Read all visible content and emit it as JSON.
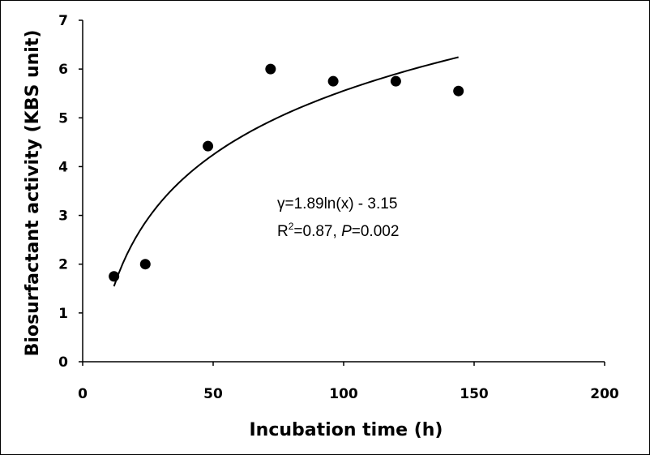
{
  "chart_data": {
    "type": "scatter",
    "xlabel": "Incubation time (h)",
    "ylabel": "Biosurfactant activity (KBS unit)",
    "xlim": [
      0,
      200
    ],
    "ylim": [
      0,
      7
    ],
    "xticks": [
      "0",
      "50",
      "100",
      "150",
      "200"
    ],
    "yticks": [
      "0",
      "1",
      "2",
      "3",
      "4",
      "5",
      "6",
      "7"
    ],
    "grid": false,
    "points": [
      {
        "x": 12,
        "y": 1.75
      },
      {
        "x": 24,
        "y": 2.0
      },
      {
        "x": 48,
        "y": 4.42
      },
      {
        "x": 72,
        "y": 6.0
      },
      {
        "x": 96,
        "y": 5.75
      },
      {
        "x": 120,
        "y": 5.75
      },
      {
        "x": 144,
        "y": 5.55
      }
    ],
    "trendline": {
      "type": "logarithmic",
      "a": 1.89,
      "b": -3.15,
      "x_range": [
        12,
        144
      ]
    },
    "annotations": {
      "equation": "γ=1.89ln(x) - 3.15",
      "r2_prefix": "R",
      "r2_sup": "2",
      "r2_rest": "=0.87, ",
      "p_label": "P",
      "p_value": "=0.002"
    }
  }
}
